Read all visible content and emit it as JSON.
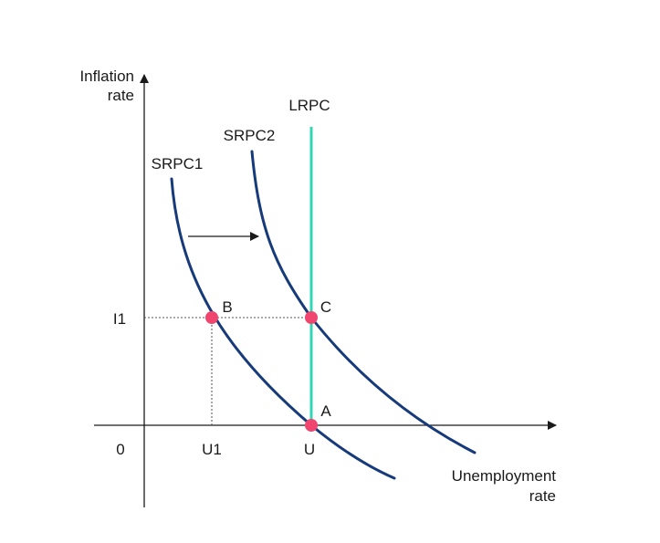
{
  "axes": {
    "y_label_line1": "Inflation",
    "y_label_line2": "rate",
    "x_label_line1": "Unemployment",
    "x_label_line2": "rate",
    "origin_label": "0"
  },
  "ticks": {
    "y_tick_i1": "I1",
    "x_tick_u1": "U1",
    "x_tick_u": "U"
  },
  "curves": {
    "srpc1_label": "SRPC1",
    "srpc2_label": "SRPC2",
    "lrpc_label": "LRPC"
  },
  "points": {
    "a_label": "A",
    "b_label": "B",
    "c_label": "C"
  },
  "colors": {
    "curve": "#173a7a",
    "lrpc": "#2fd8b4",
    "point": "#f0456e",
    "axis": "#1a1a1a",
    "guide": "#555555"
  }
}
